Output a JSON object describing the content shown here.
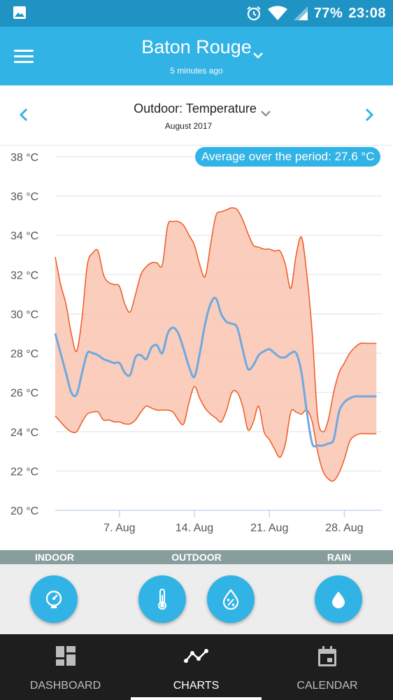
{
  "status_bar": {
    "battery": "77%",
    "time": "23:08"
  },
  "app_bar": {
    "location": "Baton Rouge",
    "updated": "5 minutes ago"
  },
  "chart_header": {
    "title": "Outdoor: Temperature",
    "period": "August 2017"
  },
  "average_badge": "Average over the period: 27.6 °C",
  "colors": {
    "primary": "#32b3e5",
    "status": "#1e93c4",
    "range_fill": "#f9c8b6",
    "range_line": "#ee5a24",
    "avg_line": "#6fa9e0",
    "category_bar": "#879e9c",
    "nav_bg": "#1e1e1e"
  },
  "chart_data": {
    "type": "area",
    "title": "Outdoor: Temperature",
    "xlabel": "",
    "ylabel": "",
    "ylim": [
      20,
      38
    ],
    "xlim": [
      1,
      31.5
    ],
    "y_ticks": [
      "20 °C",
      "22 °C",
      "24 °C",
      "26 °C",
      "28 °C",
      "30 °C",
      "32 °C",
      "34 °C",
      "36 °C",
      "38 °C"
    ],
    "x_ticks": [
      {
        "day": 7,
        "label": "7. Aug"
      },
      {
        "day": 14,
        "label": "14. Aug"
      },
      {
        "day": 21,
        "label": "21. Aug"
      },
      {
        "day": 28,
        "label": "28. Aug"
      }
    ],
    "grid": true,
    "series": [
      {
        "kind": "max",
        "x": [
          1,
          1.5,
          2,
          2.5,
          3,
          3.5,
          4,
          4.5,
          5,
          5.5,
          6,
          6.5,
          7,
          7.5,
          8,
          8.5,
          9,
          9.5,
          10,
          10.5,
          11,
          11.5,
          12,
          12.5,
          13,
          13.5,
          14,
          14.5,
          15,
          15.5,
          16,
          16.5,
          17,
          17.5,
          18,
          18.5,
          19,
          19.5,
          20,
          20.5,
          21,
          21.5,
          22,
          22.5,
          23,
          23.5,
          24,
          24.5,
          25,
          25.5,
          26,
          26.5,
          27,
          27.5,
          28,
          28.5,
          29,
          29.5,
          30,
          30.5,
          31
        ],
        "values": [
          32.9,
          31.5,
          30.5,
          29.0,
          28.1,
          29.8,
          32.5,
          33.1,
          33.2,
          32.0,
          31.6,
          31.5,
          31.4,
          30.5,
          30.1,
          31.0,
          32.0,
          32.4,
          32.6,
          32.6,
          32.5,
          34.5,
          34.7,
          34.7,
          34.5,
          34.0,
          33.5,
          32.5,
          31.9,
          33.5,
          35.0,
          35.2,
          35.3,
          35.4,
          35.3,
          34.8,
          34.1,
          33.5,
          33.4,
          33.3,
          33.3,
          33.2,
          33.2,
          32.5,
          31.3,
          33.0,
          33.9,
          32.0,
          29.0,
          24.8,
          24.0,
          24.6,
          26.0,
          27.0,
          27.5,
          28.0,
          28.3,
          28.5,
          28.5,
          28.5,
          28.5
        ]
      },
      {
        "kind": "min",
        "x": [
          1,
          1.5,
          2,
          2.5,
          3,
          3.5,
          4,
          4.5,
          5,
          5.5,
          6,
          6.5,
          7,
          7.5,
          8,
          8.5,
          9,
          9.5,
          10,
          10.5,
          11,
          11.5,
          12,
          12.5,
          13,
          13.5,
          14,
          14.5,
          15,
          15.5,
          16,
          16.5,
          17,
          17.5,
          18,
          18.5,
          19,
          19.5,
          20,
          20.5,
          21,
          21.5,
          22,
          22.5,
          23,
          23.5,
          24,
          24.5,
          25,
          25.5,
          26,
          26.5,
          27,
          27.5,
          28,
          28.5,
          29,
          29.5,
          30,
          30.5,
          31
        ],
        "values": [
          24.8,
          24.5,
          24.2,
          24.0,
          24.0,
          24.5,
          24.9,
          25.0,
          25.0,
          24.6,
          24.6,
          24.5,
          24.5,
          24.4,
          24.4,
          24.6,
          25.0,
          25.3,
          25.2,
          25.1,
          25.1,
          25.1,
          25.0,
          24.6,
          24.4,
          25.5,
          26.3,
          25.7,
          25.2,
          24.9,
          24.7,
          24.5,
          25.1,
          26.0,
          26.0,
          25.3,
          24.1,
          24.5,
          25.3,
          24.0,
          23.6,
          23.1,
          22.7,
          23.4,
          25.0,
          25.0,
          24.9,
          25.1,
          24.5,
          23.0,
          22.0,
          21.6,
          21.5,
          21.9,
          22.6,
          23.5,
          23.8,
          23.9,
          23.9,
          23.9,
          23.9
        ]
      },
      {
        "kind": "average",
        "x": [
          1,
          1.5,
          2,
          2.5,
          3,
          3.5,
          4,
          4.5,
          5,
          5.5,
          6,
          6.5,
          7,
          7.5,
          8,
          8.5,
          9,
          9.5,
          10,
          10.5,
          11,
          11.5,
          12,
          12.5,
          13,
          13.5,
          14,
          14.5,
          15,
          15.5,
          16,
          16.5,
          17,
          17.5,
          18,
          18.5,
          19,
          19.5,
          20,
          20.5,
          21,
          21.5,
          22,
          22.5,
          23,
          23.5,
          24,
          24.5,
          25,
          25.5,
          26,
          26.5,
          27,
          27.5,
          28,
          28.5,
          29,
          29.5,
          30,
          30.5,
          31
        ],
        "values": [
          29.0,
          28.0,
          27.0,
          26.0,
          25.9,
          27.0,
          28.0,
          28.0,
          27.9,
          27.7,
          27.6,
          27.5,
          27.5,
          27.0,
          26.9,
          27.8,
          27.9,
          27.7,
          28.3,
          28.4,
          28.0,
          29.0,
          29.3,
          29.0,
          28.2,
          27.3,
          26.8,
          28.0,
          29.5,
          30.5,
          30.8,
          30.0,
          29.6,
          29.5,
          29.3,
          28.2,
          27.2,
          27.4,
          27.9,
          28.1,
          28.2,
          28.0,
          27.8,
          27.8,
          28.0,
          28.0,
          27.0,
          25.0,
          23.4,
          23.3,
          23.3,
          23.4,
          23.6,
          25.0,
          25.5,
          25.7,
          25.8,
          25.8,
          25.8,
          25.8,
          25.8
        ]
      }
    ]
  },
  "sensor_categories": [
    "INDOOR",
    "OUTDOOR",
    "RAIN"
  ],
  "sensor_buttons": [
    "pressure-gauge-icon",
    "thermometer-icon",
    "humidity-icon",
    "rain-drop-icon"
  ],
  "bottom_nav": [
    {
      "label": "DASHBOARD",
      "icon": "dashboard-grid-icon"
    },
    {
      "label": "CHARTS",
      "icon": "line-chart-icon"
    },
    {
      "label": "CALENDAR",
      "icon": "calendar-icon"
    }
  ]
}
